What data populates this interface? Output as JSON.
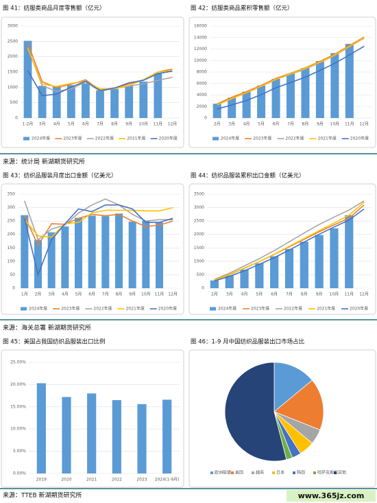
{
  "chart_data": [
    {
      "type": "combo",
      "title": "图 41：纺服类商品月度零售额（亿元）",
      "categories": [
        "1-2月",
        "3月",
        "4月",
        "5月",
        "6月",
        "7月",
        "8月",
        "9月",
        "10月",
        "11月",
        "12月"
      ],
      "ylim": [
        0,
        3000
      ],
      "yticks": [
        0,
        500,
        1000,
        1500,
        2000,
        2500,
        3000
      ],
      "grid": true,
      "series": [
        {
          "name": "2024年度",
          "type": "bar",
          "color": "#5b9bd5",
          "values": [
            2520,
            1050,
            1040,
            1070,
            1130,
            900,
            950,
            1050,
            1190,
            1470,
            null
          ]
        },
        {
          "name": "2023年度",
          "type": "line",
          "color": "#ed7d31",
          "values": [
            2450,
            1180,
            1000,
            1100,
            1250,
            910,
            980,
            1110,
            1250,
            1500,
            1600
          ]
        },
        {
          "name": "2022年度",
          "type": "line",
          "color": "#a5a5a5",
          "values": [
            2300,
            1050,
            870,
            950,
            1180,
            880,
            960,
            1040,
            1120,
            1230,
            1330
          ]
        },
        {
          "name": "2021年度",
          "type": "line",
          "color": "#ffc000",
          "values": [
            2280,
            1110,
            1030,
            1130,
            1200,
            950,
            960,
            1060,
            1250,
            1500,
            1550
          ]
        },
        {
          "name": "2020年度",
          "type": "line",
          "color": "#4472c4",
          "values": [
            1550,
            730,
            780,
            1010,
            1200,
            890,
            980,
            1150,
            1230,
            1450,
            1530
          ]
        }
      ]
    },
    {
      "type": "combo",
      "title": "图 42：纺服类商品累积零售额（亿元）",
      "categories": [
        "2月",
        "3月",
        "4月",
        "5月",
        "6月",
        "7月",
        "8月",
        "9月",
        "10月",
        "11月",
        "12月"
      ],
      "ylim": [
        0,
        16000
      ],
      "yticks": [
        0,
        2000,
        4000,
        6000,
        8000,
        10000,
        12000,
        14000,
        16000
      ],
      "grid": true,
      "series": [
        {
          "name": "2024年度",
          "type": "bar",
          "color": "#5b9bd5",
          "values": [
            2500,
            3550,
            4600,
            5650,
            6800,
            7700,
            8700,
            9900,
            11300,
            12900,
            null
          ]
        },
        {
          "name": "2023年度",
          "type": "line",
          "color": "#ed7d31",
          "values": [
            2450,
            3600,
            4600,
            5700,
            6900,
            7800,
            8750,
            9850,
            11100,
            12600,
            14100
          ]
        },
        {
          "name": "2022年度",
          "type": "line",
          "color": "#a5a5a5",
          "values": [
            2300,
            3400,
            4400,
            5500,
            6700,
            7600,
            8500,
            9650,
            10900,
            12400,
            13900
          ]
        },
        {
          "name": "2021年度",
          "type": "line",
          "color": "#ffc000",
          "values": [
            2280,
            3390,
            4420,
            5550,
            6750,
            7700,
            8660,
            9720,
            10970,
            12470,
            14000
          ]
        },
        {
          "name": "2020年度",
          "type": "line",
          "color": "#4472c4",
          "values": [
            1550,
            2280,
            3060,
            4070,
            5270,
            6160,
            7140,
            8290,
            9520,
            10970,
            12500
          ]
        }
      ]
    },
    {
      "type": "combo",
      "title": "图 43：纺织品服装月度出口金额（亿美元）",
      "categories": [
        "1月",
        "2月",
        "3月",
        "4月",
        "5月",
        "6月",
        "7月",
        "8月",
        "9月",
        "10月",
        "11月",
        "12月"
      ],
      "ylim": [
        0,
        350
      ],
      "yticks": [
        0,
        50,
        100,
        150,
        200,
        250,
        300,
        350
      ],
      "grid": true,
      "series": [
        {
          "name": "2024年度",
          "type": "bar",
          "color": "#5b9bd5",
          "values": [
            272,
            180,
            208,
            230,
            262,
            270,
            268,
            278,
            248,
            252,
            245,
            null
          ]
        },
        {
          "name": "2023年度",
          "type": "line",
          "color": "#ed7d31",
          "values": [
            270,
            160,
            240,
            238,
            260,
            275,
            270,
            275,
            250,
            230,
            235,
            250
          ]
        },
        {
          "name": "2022年度",
          "type": "line",
          "color": "#a5a5a5",
          "values": [
            325,
            180,
            220,
            235,
            280,
            310,
            332,
            310,
            275,
            250,
            255,
            255
          ]
        },
        {
          "name": "2021年度",
          "type": "line",
          "color": "#ffc000",
          "values": [
            255,
            195,
            190,
            240,
            245,
            280,
            290,
            290,
            290,
            288,
            288,
            300
          ]
        },
        {
          "name": "2020年度",
          "type": "line",
          "color": "#4472c4",
          "values": [
            260,
            50,
            180,
            240,
            295,
            285,
            310,
            310,
            295,
            245,
            245,
            260
          ]
        }
      ]
    },
    {
      "type": "combo",
      "title": "图 44：纺织品服装累积出口金额（亿美元）",
      "categories": [
        "2月",
        "3月",
        "4月",
        "5月",
        "6月",
        "7月",
        "8月",
        "9月",
        "10月",
        "11月",
        "12月"
      ],
      "ylim": [
        0,
        3500
      ],
      "yticks": [
        0,
        500,
        1000,
        1500,
        2000,
        2500,
        3000,
        3500
      ],
      "grid": true,
      "series": [
        {
          "name": "2024年度",
          "type": "bar",
          "color": "#5b9bd5",
          "values": [
            290,
            470,
            690,
            930,
            1190,
            1460,
            1730,
            1980,
            2230,
            2720,
            null
          ]
        },
        {
          "name": "2023年度",
          "type": "line",
          "color": "#ed7d31",
          "values": [
            300,
            500,
            740,
            990,
            1260,
            1540,
            1820,
            2100,
            2360,
            2610,
            3100
          ]
        },
        {
          "name": "2022年度",
          "type": "line",
          "color": "#a5a5a5",
          "values": [
            330,
            560,
            830,
            1100,
            1400,
            1730,
            2060,
            2370,
            2650,
            2910,
            3250
          ]
        },
        {
          "name": "2021年度",
          "type": "line",
          "color": "#ffc000",
          "values": [
            310,
            510,
            750,
            990,
            1270,
            1560,
            1850,
            2140,
            2430,
            2720,
            3200
          ]
        },
        {
          "name": "2020年度",
          "type": "line",
          "color": "#4472c4",
          "values": [
            270,
            440,
            650,
            890,
            1140,
            1420,
            1720,
            2010,
            2280,
            2540,
            2950
          ]
        }
      ]
    },
    {
      "type": "bar",
      "title": "图 45：美国占我国纺织品服装出口比例",
      "categories": [
        "2019",
        "2020",
        "2021",
        "2022",
        "2023",
        "2024(1-9月)"
      ],
      "ylim": [
        0,
        0.25
      ],
      "yticks": [
        {
          "value": 0,
          "label": "0.00%"
        },
        {
          "value": 0.05,
          "label": "5.00%"
        },
        {
          "value": 0.1,
          "label": "10.00%"
        },
        {
          "value": 0.15,
          "label": "15.00%"
        },
        {
          "value": 0.2,
          "label": "20.00%"
        },
        {
          "value": 0.25,
          "label": "25.00%"
        }
      ],
      "grid": true,
      "color": "#5b9bd5",
      "values": [
        0.203,
        0.172,
        0.18,
        0.165,
        0.156,
        0.166
      ]
    },
    {
      "type": "pie",
      "title": "图 46：1-9 月中国纺织品服装出口市场占比",
      "categories": [
        "欧洲联盟",
        "美国",
        "越南",
        "日本",
        "韩国",
        "哈萨克斯坦",
        "其他"
      ],
      "values": [
        14,
        17,
        5,
        5,
        3,
        2,
        54
      ],
      "colors": [
        "#5b9bd5",
        "#ed7d31",
        "#a5a5a5",
        "#ffc000",
        "#4472c4",
        "#70ad47",
        "#264478"
      ]
    }
  ],
  "sources": [
    "来源：统计局  新湖期货研究所",
    "来源：海关总署  新湖期货研究所",
    "来源：TTEB  新湖期货研究所"
  ],
  "watermark": "www.365jz.com"
}
